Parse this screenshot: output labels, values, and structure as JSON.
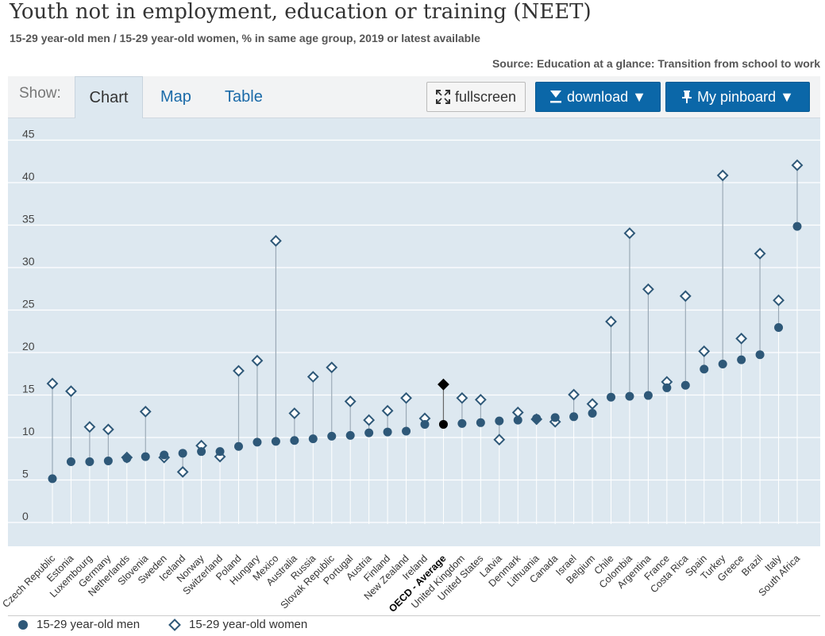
{
  "header": {
    "title": "Youth not in employment, education or training (NEET)",
    "subtitle": "15-29 year-old men / 15-29 year-old women, % in same age group, 2019 or latest available",
    "source": "Source: Education at a glance: Transition from school to work"
  },
  "toolbar": {
    "show_label": "Show:",
    "tabs": [
      "Chart",
      "Map",
      "Table"
    ],
    "fullscreen_label": "fullscreen",
    "download_label": "download ▼",
    "pinboard_label": "My pinboard ▼"
  },
  "colors": {
    "men": "#2e5878",
    "women": "#2e5878",
    "average": "#000000",
    "plot_bg": "#dde8f0",
    "accent": "#0b67a8"
  },
  "icons": {
    "fullscreen": "expand-icon",
    "download": "download-icon",
    "pinboard": "pin-icon"
  },
  "legend": {
    "men": "15-29 year-old men",
    "women": "15-29 year-old women"
  },
  "chart_data": {
    "type": "scatter",
    "ylim": [
      0,
      45
    ],
    "yticks": [
      0,
      5,
      10,
      15,
      20,
      25,
      30,
      35,
      40,
      45
    ],
    "grid": true,
    "legend_position": "bottom",
    "highlight": "OECD - Average",
    "categories": [
      "Czech Republic",
      "Estonia",
      "Luxembourg",
      "Germany",
      "Netherlands",
      "Slovenia",
      "Sweden",
      "Iceland",
      "Norway",
      "Switzerland",
      "Poland",
      "Hungary",
      "Mexico",
      "Australia",
      "Russia",
      "Slovak Republic",
      "Portugal",
      "Austria",
      "Finland",
      "New Zealand",
      "Ireland",
      "OECD - Average",
      "United Kingdom",
      "United States",
      "Latvia",
      "Denmark",
      "Lithuania",
      "Canada",
      "Israel",
      "Belgium",
      "Chile",
      "Colombia",
      "Argentina",
      "France",
      "Costa Rica",
      "Spain",
      "Turkey",
      "Greece",
      "Brazil",
      "Italy",
      "South Africa"
    ],
    "series": [
      {
        "name": "15-29 year-old men",
        "values": [
          4.4,
          6.4,
          6.4,
          6.5,
          6.8,
          7.0,
          7.2,
          7.4,
          7.6,
          7.6,
          8.2,
          8.7,
          8.8,
          8.9,
          9.1,
          9.4,
          9.5,
          9.8,
          9.9,
          10.0,
          10.8,
          10.8,
          10.9,
          11.0,
          11.2,
          11.3,
          11.5,
          11.6,
          11.7,
          12.1,
          14.0,
          14.1,
          14.2,
          15.1,
          15.4,
          17.3,
          17.9,
          18.4,
          19.0,
          22.2,
          34.1
        ]
      },
      {
        "name": "15-29 year-old women",
        "values": [
          15.6,
          14.7,
          10.5,
          10.2,
          6.9,
          12.3,
          6.9,
          5.2,
          8.3,
          7.0,
          17.1,
          18.3,
          32.4,
          12.1,
          16.4,
          17.5,
          13.5,
          11.3,
          12.4,
          13.9,
          11.5,
          15.5,
          13.9,
          13.7,
          9.0,
          12.2,
          11.4,
          11.1,
          14.3,
          13.2,
          22.9,
          33.3,
          26.7,
          15.8,
          25.9,
          19.4,
          40.1,
          20.9,
          30.9,
          25.4,
          41.3
        ]
      }
    ]
  }
}
